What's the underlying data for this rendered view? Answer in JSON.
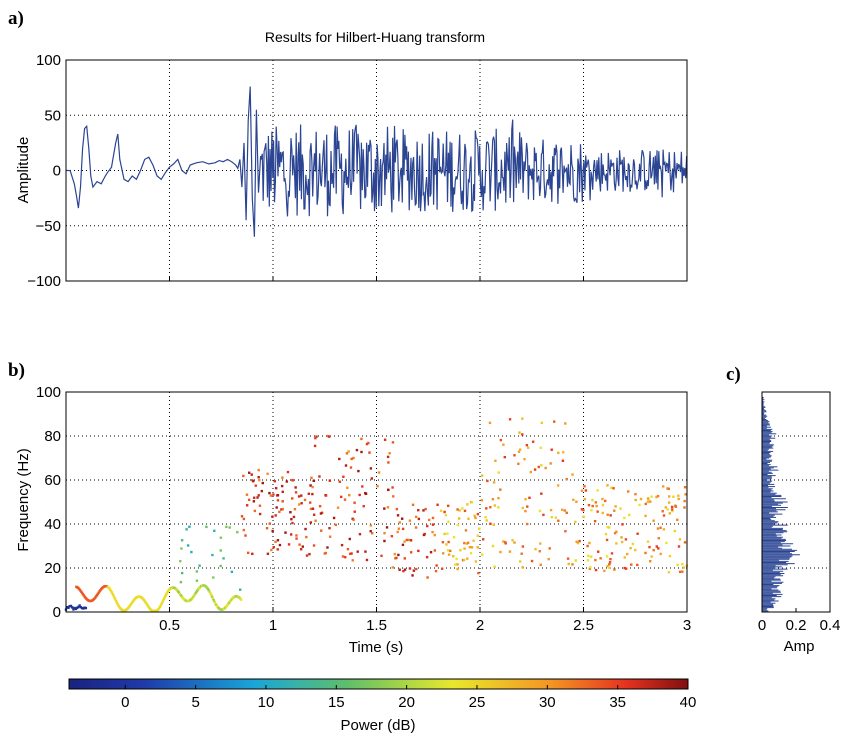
{
  "chart_data": [
    {
      "type": "line",
      "panel_label": "a)",
      "title": "Results for Hilbert-Huang transform",
      "xlabel": "",
      "ylabel": "Amplitude",
      "xlim": [
        0,
        3
      ],
      "ylim": [
        -100,
        100
      ],
      "x_ticks": [
        0.5,
        1,
        1.5,
        2,
        2.5
      ],
      "y_ticks": [
        -100,
        -50,
        0,
        50,
        100
      ],
      "y_tick_labels": [
        "−100",
        "−50",
        "0",
        "50",
        "100"
      ],
      "grid": true,
      "line_color": "#2b4593",
      "series": [
        {
          "description_points": [
            [
              0.0,
              0
            ],
            [
              0.02,
              0
            ],
            [
              0.04,
              -12
            ],
            [
              0.05,
              -22
            ],
            [
              0.06,
              -34
            ],
            [
              0.07,
              -15
            ],
            [
              0.08,
              20
            ],
            [
              0.09,
              38
            ],
            [
              0.1,
              40
            ],
            [
              0.11,
              20
            ],
            [
              0.12,
              -5
            ],
            [
              0.13,
              -15
            ],
            [
              0.15,
              -10
            ],
            [
              0.17,
              -12
            ],
            [
              0.19,
              -5
            ],
            [
              0.2,
              -2
            ],
            [
              0.22,
              3
            ],
            [
              0.24,
              25
            ],
            [
              0.25,
              33
            ],
            [
              0.26,
              10
            ],
            [
              0.28,
              -8
            ],
            [
              0.3,
              -10
            ],
            [
              0.32,
              -5
            ],
            [
              0.34,
              -8
            ],
            [
              0.36,
              0
            ],
            [
              0.38,
              10
            ],
            [
              0.4,
              12
            ],
            [
              0.42,
              5
            ],
            [
              0.44,
              -5
            ],
            [
              0.46,
              -8
            ],
            [
              0.48,
              -2
            ],
            [
              0.5,
              3
            ],
            [
              0.52,
              6
            ],
            [
              0.54,
              10
            ],
            [
              0.56,
              0
            ],
            [
              0.58,
              -3
            ],
            [
              0.6,
              5
            ],
            [
              0.63,
              7
            ],
            [
              0.66,
              8
            ],
            [
              0.69,
              6
            ],
            [
              0.72,
              7
            ],
            [
              0.74,
              9
            ],
            [
              0.76,
              8
            ],
            [
              0.78,
              10
            ],
            [
              0.8,
              8
            ],
            [
              0.82,
              5
            ],
            [
              0.83,
              2
            ],
            [
              0.84,
              10
            ],
            [
              0.85,
              -15
            ],
            [
              0.86,
              25
            ],
            [
              0.87,
              -45
            ],
            [
              0.88,
              45
            ],
            [
              0.89,
              76
            ],
            [
              0.9,
              -25
            ],
            [
              0.91,
              -60
            ],
            [
              0.92,
              55
            ],
            [
              0.93,
              -20
            ]
          ]
        }
      ]
    },
    {
      "type": "scatter",
      "panel_label": "b)",
      "xlabel": "Time (s)",
      "ylabel": "Frequency (Hz)",
      "xlim": [
        0,
        3
      ],
      "ylim": [
        0,
        100
      ],
      "x_ticks": [
        0.5,
        1,
        1.5,
        2,
        2.5,
        3
      ],
      "y_ticks": [
        0,
        20,
        40,
        60,
        80,
        100
      ],
      "grid": true,
      "color_by": "Power (dB)"
    },
    {
      "type": "bar",
      "panel_label": "c)",
      "xlabel": "Amp",
      "ylabel": "",
      "xlim": [
        0,
        0.4
      ],
      "ylim": [
        0,
        100
      ],
      "x_ticks": [
        0,
        0.2,
        0.4
      ],
      "grid": true,
      "orientation": "horizontal",
      "bar_color": "#2b4593",
      "envelope": [
        [
          0,
          0.05
        ],
        [
          5,
          0.1
        ],
        [
          10,
          0.14
        ],
        [
          15,
          0.12
        ],
        [
          20,
          0.18
        ],
        [
          25,
          0.22
        ],
        [
          28,
          0.26
        ],
        [
          30,
          0.2
        ],
        [
          35,
          0.18
        ],
        [
          40,
          0.15
        ],
        [
          45,
          0.12
        ],
        [
          50,
          0.2
        ],
        [
          55,
          0.1
        ],
        [
          60,
          0.08
        ],
        [
          65,
          0.1
        ],
        [
          70,
          0.06
        ],
        [
          75,
          0.07
        ],
        [
          80,
          0.09
        ],
        [
          85,
          0.06
        ],
        [
          90,
          0.03
        ],
        [
          95,
          0.02
        ],
        [
          100,
          0.0
        ]
      ]
    }
  ],
  "colorbar": {
    "label": "Power (dB)",
    "ticks": [
      0,
      5,
      10,
      15,
      20,
      25,
      30,
      35,
      40
    ],
    "range": [
      -4,
      40
    ]
  }
}
